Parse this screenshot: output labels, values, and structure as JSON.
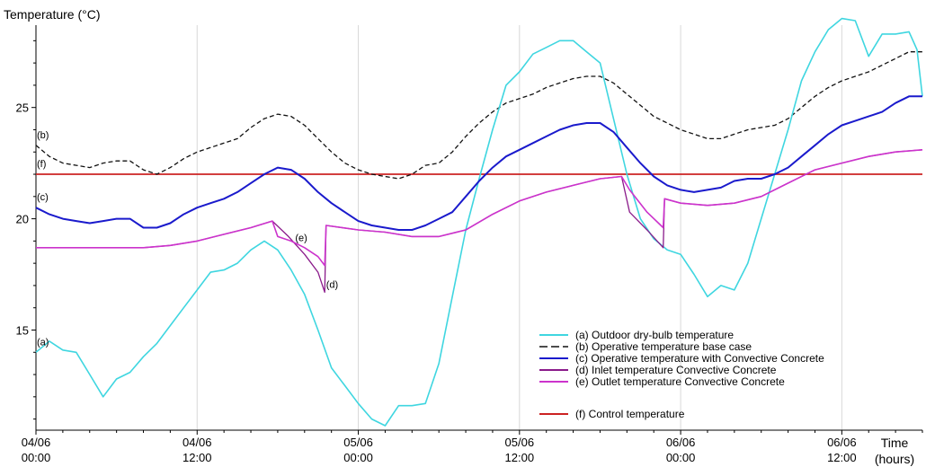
{
  "chart_data": {
    "type": "line",
    "ylabel": "Temperature (°C)",
    "xlabel_line1": "Time",
    "xlabel_line2": "(hours)",
    "x_unit": "hours",
    "xlim": [
      0,
      66
    ],
    "ylim": [
      10.5,
      28.7
    ],
    "grid": "vertical",
    "legend_position": "bottom-right",
    "y_ticks": [
      15,
      20,
      25
    ],
    "x_ticks": [
      {
        "x": 0,
        "line1": "04/06",
        "line2": "00:00"
      },
      {
        "x": 12,
        "line1": "04/06",
        "line2": "12:00"
      },
      {
        "x": 24,
        "line1": "05/06",
        "line2": "00:00"
      },
      {
        "x": 36,
        "line1": "05/06",
        "line2": "12:00"
      },
      {
        "x": 48,
        "line1": "06/06",
        "line2": "00:00"
      },
      {
        "x": 60,
        "line1": "06/06",
        "line2": "12:00"
      }
    ],
    "series": [
      {
        "name": "(a) Outdoor dry-bulb temperature",
        "label": "(a)",
        "color": "#3fd6e0",
        "style": "solid",
        "points": [
          [
            0,
            14.0
          ],
          [
            1,
            14.5
          ],
          [
            2,
            14.1
          ],
          [
            3,
            14.0
          ],
          [
            4,
            13.0
          ],
          [
            5,
            12.0
          ],
          [
            6,
            12.8
          ],
          [
            7,
            13.1
          ],
          [
            8,
            13.8
          ],
          [
            9,
            14.4
          ],
          [
            10,
            15.2
          ],
          [
            11,
            16.0
          ],
          [
            12,
            16.8
          ],
          [
            13,
            17.6
          ],
          [
            14,
            17.7
          ],
          [
            15,
            18.0
          ],
          [
            16,
            18.6
          ],
          [
            17,
            19.0
          ],
          [
            18,
            18.6
          ],
          [
            19,
            17.7
          ],
          [
            20,
            16.6
          ],
          [
            21,
            15.0
          ],
          [
            22,
            13.3
          ],
          [
            23,
            12.5
          ],
          [
            24,
            11.7
          ],
          [
            25,
            11.0
          ],
          [
            26,
            10.7
          ],
          [
            27,
            11.6
          ],
          [
            28,
            11.6
          ],
          [
            29,
            11.7
          ],
          [
            30,
            13.5
          ],
          [
            31,
            16.5
          ],
          [
            32,
            19.5
          ],
          [
            33,
            21.8
          ],
          [
            34,
            24.0
          ],
          [
            35,
            26.0
          ],
          [
            36,
            26.6
          ],
          [
            37,
            27.4
          ],
          [
            38,
            27.7
          ],
          [
            39,
            28.0
          ],
          [
            40,
            28.0
          ],
          [
            41,
            27.5
          ],
          [
            42,
            27.0
          ],
          [
            43,
            24.5
          ],
          [
            44,
            22.0
          ],
          [
            45,
            20.0
          ],
          [
            46,
            19.1
          ],
          [
            47,
            18.6
          ],
          [
            48,
            18.4
          ],
          [
            49,
            17.5
          ],
          [
            50,
            16.5
          ],
          [
            51,
            17.0
          ],
          [
            52,
            16.8
          ],
          [
            53,
            18.0
          ],
          [
            54,
            20.0
          ],
          [
            55,
            22.0
          ],
          [
            56,
            24.0
          ],
          [
            57,
            26.2
          ],
          [
            58,
            27.5
          ],
          [
            59,
            28.5
          ],
          [
            60,
            29.0
          ],
          [
            61,
            28.9
          ],
          [
            62,
            27.3
          ],
          [
            63,
            28.3
          ],
          [
            64,
            28.3
          ],
          [
            65,
            28.4
          ],
          [
            65.6,
            27.6
          ],
          [
            66,
            25.5
          ]
        ]
      },
      {
        "name": "(b) Operative temperature base case",
        "label": "(b)",
        "color": "#111111",
        "style": "dashed",
        "points": [
          [
            0,
            23.3
          ],
          [
            1,
            22.8
          ],
          [
            2,
            22.5
          ],
          [
            3,
            22.4
          ],
          [
            4,
            22.3
          ],
          [
            5,
            22.5
          ],
          [
            6,
            22.6
          ],
          [
            7,
            22.6
          ],
          [
            8,
            22.2
          ],
          [
            9,
            22.0
          ],
          [
            10,
            22.3
          ],
          [
            11,
            22.7
          ],
          [
            12,
            23.0
          ],
          [
            13,
            23.2
          ],
          [
            14,
            23.4
          ],
          [
            15,
            23.6
          ],
          [
            16,
            24.1
          ],
          [
            17,
            24.5
          ],
          [
            18,
            24.7
          ],
          [
            19,
            24.6
          ],
          [
            20,
            24.2
          ],
          [
            21,
            23.6
          ],
          [
            22,
            23.0
          ],
          [
            23,
            22.5
          ],
          [
            24,
            22.2
          ],
          [
            25,
            22.0
          ],
          [
            26,
            21.9
          ],
          [
            27,
            21.8
          ],
          [
            28,
            22.0
          ],
          [
            29,
            22.4
          ],
          [
            30,
            22.5
          ],
          [
            31,
            23.0
          ],
          [
            32,
            23.7
          ],
          [
            33,
            24.3
          ],
          [
            34,
            24.8
          ],
          [
            35,
            25.2
          ],
          [
            36,
            25.4
          ],
          [
            37,
            25.6
          ],
          [
            38,
            25.9
          ],
          [
            39,
            26.1
          ],
          [
            40,
            26.3
          ],
          [
            41,
            26.4
          ],
          [
            42,
            26.4
          ],
          [
            43,
            26.1
          ],
          [
            44,
            25.6
          ],
          [
            45,
            25.1
          ],
          [
            46,
            24.6
          ],
          [
            47,
            24.3
          ],
          [
            48,
            24.0
          ],
          [
            49,
            23.8
          ],
          [
            50,
            23.6
          ],
          [
            51,
            23.6
          ],
          [
            52,
            23.8
          ],
          [
            53,
            24.0
          ],
          [
            54,
            24.1
          ],
          [
            55,
            24.2
          ],
          [
            56,
            24.5
          ],
          [
            57,
            25.0
          ],
          [
            58,
            25.5
          ],
          [
            59,
            25.9
          ],
          [
            60,
            26.2
          ],
          [
            61,
            26.4
          ],
          [
            62,
            26.6
          ],
          [
            63,
            26.9
          ],
          [
            64,
            27.2
          ],
          [
            65,
            27.5
          ],
          [
            66,
            27.5
          ]
        ]
      },
      {
        "name": "(c) Operative temperature with Convective Concrete",
        "label": "(c)",
        "color": "#1a1acc",
        "style": "solid",
        "points": [
          [
            0,
            20.5
          ],
          [
            1,
            20.2
          ],
          [
            2,
            20.0
          ],
          [
            3,
            19.9
          ],
          [
            4,
            19.8
          ],
          [
            5,
            19.9
          ],
          [
            6,
            20.0
          ],
          [
            7,
            20.0
          ],
          [
            8,
            19.6
          ],
          [
            9,
            19.6
          ],
          [
            10,
            19.8
          ],
          [
            11,
            20.2
          ],
          [
            12,
            20.5
          ],
          [
            13,
            20.7
          ],
          [
            14,
            20.9
          ],
          [
            15,
            21.2
          ],
          [
            16,
            21.6
          ],
          [
            17,
            22.0
          ],
          [
            18,
            22.3
          ],
          [
            19,
            22.2
          ],
          [
            20,
            21.8
          ],
          [
            21,
            21.2
          ],
          [
            22,
            20.7
          ],
          [
            23,
            20.3
          ],
          [
            24,
            19.9
          ],
          [
            25,
            19.7
          ],
          [
            26,
            19.6
          ],
          [
            27,
            19.5
          ],
          [
            28,
            19.5
          ],
          [
            29,
            19.7
          ],
          [
            30,
            20.0
          ],
          [
            31,
            20.3
          ],
          [
            32,
            21.0
          ],
          [
            33,
            21.7
          ],
          [
            34,
            22.3
          ],
          [
            35,
            22.8
          ],
          [
            36,
            23.1
          ],
          [
            37,
            23.4
          ],
          [
            38,
            23.7
          ],
          [
            39,
            24.0
          ],
          [
            40,
            24.2
          ],
          [
            41,
            24.3
          ],
          [
            42,
            24.3
          ],
          [
            43,
            23.9
          ],
          [
            44,
            23.2
          ],
          [
            45,
            22.5
          ],
          [
            46,
            21.9
          ],
          [
            47,
            21.5
          ],
          [
            48,
            21.3
          ],
          [
            49,
            21.2
          ],
          [
            50,
            21.3
          ],
          [
            51,
            21.4
          ],
          [
            52,
            21.7
          ],
          [
            53,
            21.8
          ],
          [
            54,
            21.8
          ],
          [
            55,
            22.0
          ],
          [
            56,
            22.3
          ],
          [
            57,
            22.8
          ],
          [
            58,
            23.3
          ],
          [
            59,
            23.8
          ],
          [
            60,
            24.2
          ],
          [
            61,
            24.4
          ],
          [
            62,
            24.6
          ],
          [
            63,
            24.8
          ],
          [
            64,
            25.2
          ],
          [
            65,
            25.5
          ],
          [
            66,
            25.5
          ]
        ]
      },
      {
        "name": "(d) Inlet temperature Convective Concrete",
        "label": "(d)",
        "color": "#8a1a8a",
        "style": "solid",
        "points": [
          [
            0,
            18.7
          ],
          [
            6,
            18.7
          ],
          [
            8,
            18.7
          ],
          [
            10,
            18.8
          ],
          [
            12,
            19.0
          ],
          [
            14,
            19.3
          ],
          [
            16,
            19.6
          ],
          [
            17.6,
            19.9
          ],
          [
            18.8,
            19.2
          ],
          [
            20,
            18.4
          ],
          [
            21,
            17.6
          ],
          [
            21.5,
            16.7
          ],
          [
            21.6,
            19.7
          ],
          [
            24,
            19.5
          ],
          [
            26,
            19.4
          ],
          [
            28,
            19.2
          ],
          [
            30,
            19.2
          ],
          [
            32,
            19.5
          ],
          [
            34,
            20.2
          ],
          [
            36,
            20.8
          ],
          [
            38,
            21.2
          ],
          [
            40,
            21.5
          ],
          [
            42,
            21.8
          ],
          [
            43.6,
            21.9
          ],
          [
            44.2,
            20.3
          ],
          [
            45.5,
            19.5
          ],
          [
            46.7,
            18.7
          ],
          [
            46.8,
            20.9
          ],
          [
            48,
            20.7
          ],
          [
            50,
            20.6
          ],
          [
            52,
            20.7
          ],
          [
            54,
            21.0
          ],
          [
            56,
            21.6
          ],
          [
            58,
            22.2
          ],
          [
            60,
            22.5
          ],
          [
            62,
            22.8
          ],
          [
            64,
            23.0
          ],
          [
            66,
            23.1
          ]
        ]
      },
      {
        "name": "(e) Outlet temperature Convective Concrete",
        "label": "(e)",
        "color": "#cc33cc",
        "style": "solid",
        "points": [
          [
            0,
            18.7
          ],
          [
            6,
            18.7
          ],
          [
            8,
            18.7
          ],
          [
            10,
            18.8
          ],
          [
            12,
            19.0
          ],
          [
            14,
            19.3
          ],
          [
            16,
            19.6
          ],
          [
            17.6,
            19.9
          ],
          [
            18,
            19.2
          ],
          [
            19,
            19.0
          ],
          [
            20,
            18.7
          ],
          [
            21,
            18.3
          ],
          [
            21.5,
            17.9
          ],
          [
            21.6,
            19.7
          ],
          [
            24,
            19.5
          ],
          [
            26,
            19.4
          ],
          [
            28,
            19.2
          ],
          [
            30,
            19.2
          ],
          [
            32,
            19.5
          ],
          [
            34,
            20.2
          ],
          [
            36,
            20.8
          ],
          [
            38,
            21.2
          ],
          [
            40,
            21.5
          ],
          [
            42,
            21.8
          ],
          [
            43.6,
            21.9
          ],
          [
            44.2,
            21.3
          ],
          [
            45.5,
            20.3
          ],
          [
            46.7,
            19.6
          ],
          [
            46.8,
            20.9
          ],
          [
            48,
            20.7
          ],
          [
            50,
            20.6
          ],
          [
            52,
            20.7
          ],
          [
            54,
            21.0
          ],
          [
            56,
            21.6
          ],
          [
            58,
            22.2
          ],
          [
            60,
            22.5
          ],
          [
            62,
            22.8
          ],
          [
            64,
            23.0
          ],
          [
            66,
            23.1
          ]
        ]
      },
      {
        "name": "(f) Control temperature",
        "label": "(f)",
        "color": "#cc2222",
        "style": "solid",
        "points": [
          [
            0,
            22.0
          ],
          [
            66,
            22.0
          ]
        ]
      }
    ],
    "annotations": [
      {
        "label": "(e)",
        "x": 19.3,
        "y": 19.0
      },
      {
        "label": "(d)",
        "x": 21.6,
        "y": 16.9
      }
    ]
  }
}
